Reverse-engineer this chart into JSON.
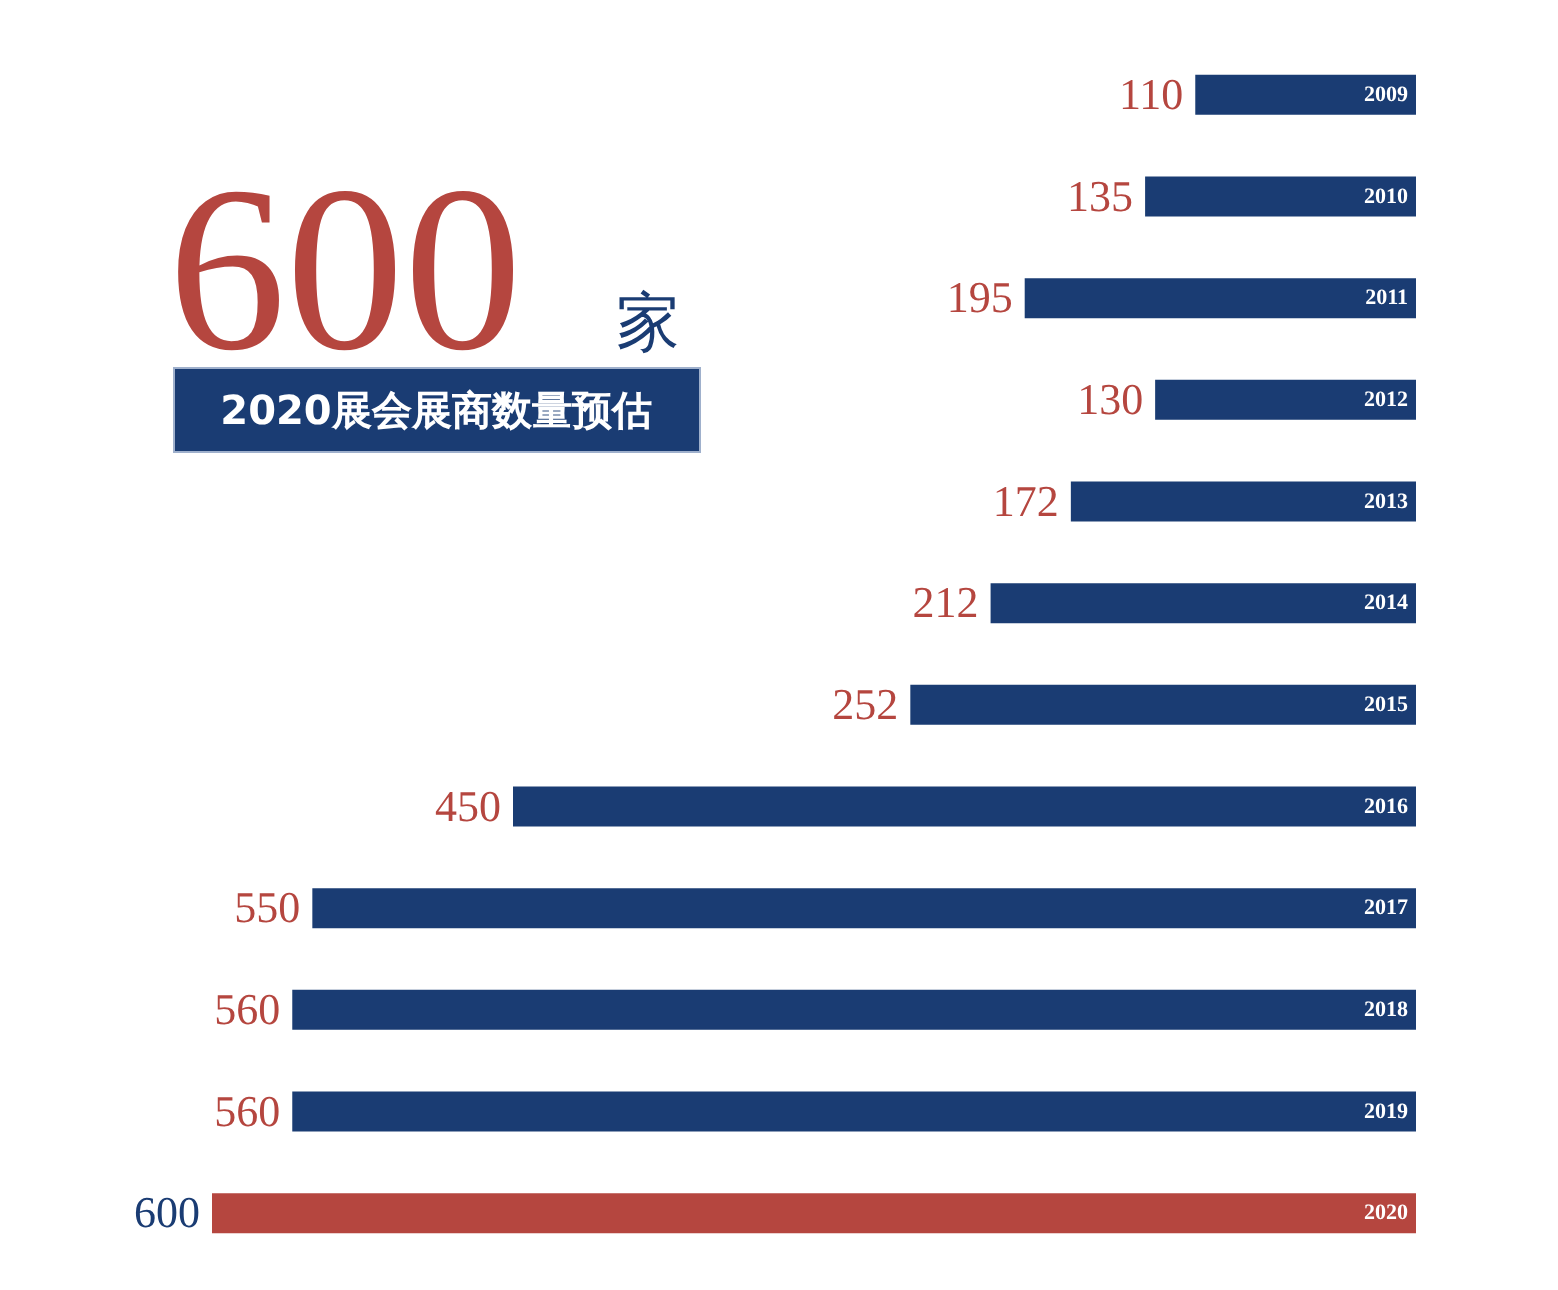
{
  "chart_data": {
    "type": "bar",
    "orientation": "horizontal",
    "categories": [
      "2009",
      "2010",
      "2011",
      "2012",
      "2013",
      "2014",
      "2015",
      "2016",
      "2017",
      "2018",
      "2019",
      "2020"
    ],
    "values": [
      110,
      135,
      195,
      130,
      172,
      212,
      252,
      450,
      550,
      560,
      560,
      600
    ],
    "colors": [
      "#1a3c73",
      "#1a3c73",
      "#1a3c73",
      "#1a3c73",
      "#1a3c73",
      "#1a3c73",
      "#1a3c73",
      "#1a3c73",
      "#1a3c73",
      "#1a3c73",
      "#1a3c73",
      "#b5463f"
    ],
    "xlim": [
      600,
      0
    ],
    "data_labels": true,
    "tick_labels": false,
    "grid": false,
    "annotations": [
      "600",
      "家",
      "2020展会展商数量预估"
    ]
  }
}
